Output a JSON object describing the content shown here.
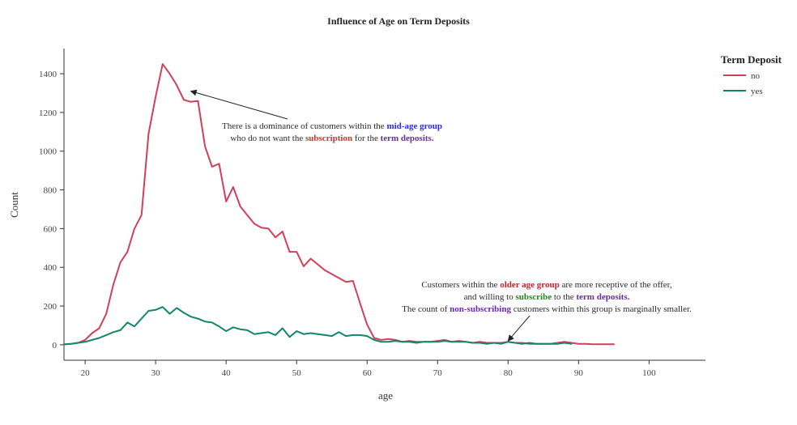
{
  "chart_data": {
    "type": "line",
    "title": "Influence of Age on Term Deposits",
    "xlabel": "age",
    "ylabel": "Count",
    "xlim": [
      17,
      108
    ],
    "ylim": [
      -80,
      1530
    ],
    "x_ticks": [
      20,
      30,
      40,
      50,
      60,
      70,
      80,
      90,
      100
    ],
    "y_ticks": [
      0,
      200,
      400,
      600,
      800,
      1000,
      1200,
      1400
    ],
    "grid": false,
    "legend": {
      "title": "Term Deposit",
      "placement": "top-right",
      "entries": [
        "no",
        "yes"
      ]
    },
    "series": [
      {
        "name": "no",
        "color": "#d1405a",
        "x": [
          17,
          18,
          19,
          20,
          21,
          22,
          23,
          24,
          25,
          26,
          27,
          28,
          29,
          30,
          31,
          32,
          33,
          34,
          35,
          36,
          37,
          38,
          39,
          40,
          41,
          42,
          43,
          44,
          45,
          46,
          47,
          48,
          49,
          50,
          51,
          52,
          53,
          54,
          55,
          56,
          57,
          58,
          59,
          60,
          61,
          62,
          63,
          64,
          65,
          66,
          67,
          68,
          69,
          70,
          71,
          72,
          73,
          74,
          75,
          76,
          77,
          78,
          79,
          80,
          81,
          82,
          83,
          84,
          85,
          86,
          87,
          88,
          89,
          90,
          91,
          92,
          93,
          94,
          95
        ],
        "values": [
          2,
          5,
          10,
          25,
          60,
          85,
          160,
          310,
          425,
          480,
          600,
          670,
          1090,
          1280,
          1450,
          1400,
          1340,
          1265,
          1255,
          1260,
          1025,
          920,
          935,
          740,
          815,
          715,
          670,
          625,
          605,
          600,
          555,
          585,
          480,
          480,
          405,
          445,
          415,
          385,
          365,
          345,
          325,
          330,
          215,
          105,
          35,
          25,
          30,
          25,
          15,
          20,
          15,
          15,
          15,
          20,
          25,
          15,
          20,
          15,
          10,
          15,
          10,
          10,
          10,
          15,
          10,
          10,
          5,
          5,
          5,
          5,
          10,
          15,
          10,
          5,
          5,
          3,
          3,
          3,
          3
        ]
      },
      {
        "name": "yes",
        "color": "#12866b",
        "x": [
          17,
          18,
          19,
          20,
          21,
          22,
          23,
          24,
          25,
          26,
          27,
          28,
          29,
          30,
          31,
          32,
          33,
          34,
          35,
          36,
          37,
          38,
          39,
          40,
          41,
          42,
          43,
          44,
          45,
          46,
          47,
          48,
          49,
          50,
          51,
          52,
          53,
          54,
          55,
          56,
          57,
          58,
          59,
          60,
          61,
          62,
          63,
          64,
          65,
          66,
          67,
          68,
          69,
          70,
          71,
          72,
          73,
          74,
          75,
          76,
          77,
          78,
          79,
          80,
          81,
          82,
          83,
          84,
          85,
          86,
          87,
          88,
          89
        ],
        "values": [
          2,
          5,
          10,
          15,
          25,
          35,
          50,
          65,
          75,
          115,
          95,
          135,
          175,
          180,
          195,
          160,
          190,
          165,
          145,
          135,
          120,
          115,
          95,
          70,
          90,
          80,
          75,
          55,
          60,
          65,
          50,
          85,
          40,
          70,
          55,
          60,
          55,
          50,
          45,
          65,
          45,
          50,
          50,
          45,
          25,
          15,
          15,
          20,
          15,
          15,
          10,
          15,
          15,
          15,
          20,
          15,
          15,
          15,
          10,
          10,
          5,
          10,
          5,
          15,
          10,
          5,
          10,
          5,
          5,
          5,
          5,
          10,
          5
        ]
      }
    ],
    "annotations": [
      {
        "lines": [
          [
            {
              "t": "There is a dominance of customers within the ",
              "c": "#2a2a2a",
              "b": false
            },
            {
              "t": "mid-age group",
              "c": "#2b2bd6",
              "b": true
            }
          ],
          [
            {
              "t": "who do not want the ",
              "c": "#2a2a2a",
              "b": false
            },
            {
              "t": "subscription",
              "c": "#e0312b",
              "b": true
            },
            {
              "t": "  for the   ",
              "c": "#2a2a2a",
              "b": false
            },
            {
              "t": "term deposits.",
              "c": "#6a2aa8",
              "b": true
            }
          ]
        ],
        "arrow_to": {
          "x": 35,
          "y": 1310
        }
      },
      {
        "lines": [
          [
            {
              "t": "Customers within the ",
              "c": "#2a2a2a",
              "b": false
            },
            {
              "t": "older age group",
              "c": "#b52a2a",
              "b": true
            },
            {
              "t": " are more receptive of the offer,",
              "c": "#2a2a2a",
              "b": false
            }
          ],
          [
            {
              "t": "and willing to ",
              "c": "#2a2a2a",
              "b": false
            },
            {
              "t": "subscribe",
              "c": "#1a8a1a",
              "b": true
            },
            {
              "t": "  to the ",
              "c": "#2a2a2a",
              "b": false
            },
            {
              "t": "term deposits.",
              "c": "#6a2aa8",
              "b": true
            }
          ],
          [
            {
              "t": "The count of ",
              "c": "#2a2a2a",
              "b": false
            },
            {
              "t": "non-subscribing",
              "c": "#6a2aa8",
              "b": true
            },
            {
              "t": " customers within this group is marginally smaller.",
              "c": "#2a2a2a",
              "b": false
            }
          ]
        ],
        "arrow_to": {
          "x": 80,
          "y": 20
        }
      }
    ]
  }
}
